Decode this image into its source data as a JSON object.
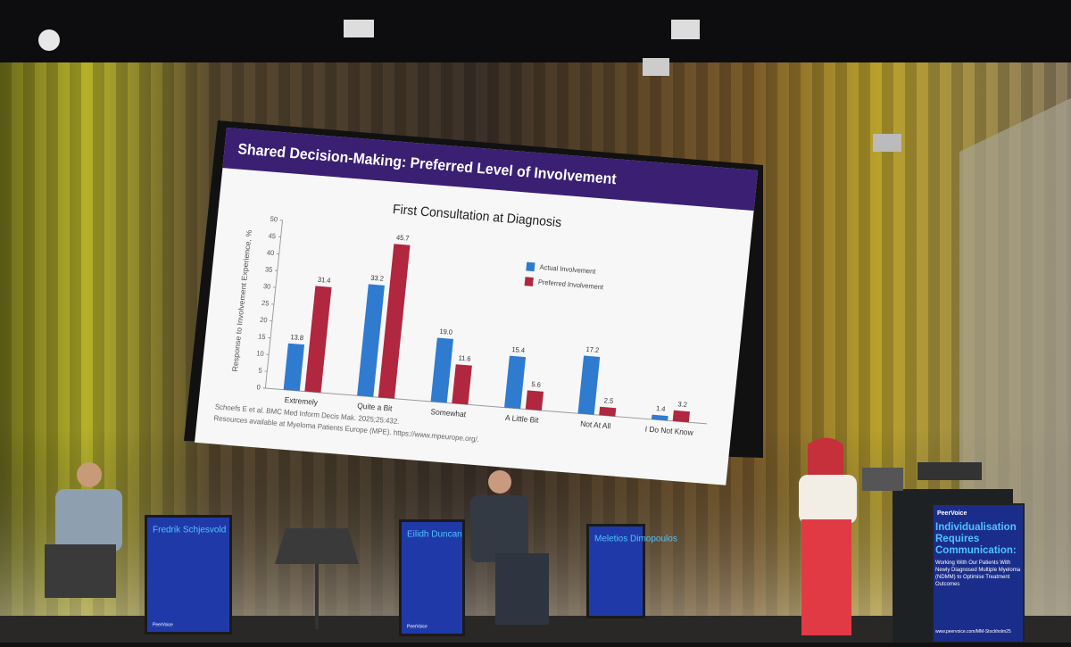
{
  "slide": {
    "title": "Shared Decision-Making: Preferred Level of Involvement",
    "footnote": [
      "Schoefs E et al. BMC Med Inform Decis Mak. 2025;25:432.",
      "Resources available at Myeloma Patients Europe (MPE). https://www.mpeurope.org/."
    ]
  },
  "chart_data": {
    "type": "bar",
    "title": "First Consultation at Diagnosis",
    "y_label": "Response to Involvement Experience, %",
    "categories": [
      "Extremely",
      "Quite a Bit",
      "Somewhat",
      "A Little Bit",
      "Not At All",
      "I Do Not Know"
    ],
    "series": [
      {
        "name": "Actual Involvement",
        "color": "#2f7bd0",
        "values": [
          13.8,
          33.2,
          19,
          15.4,
          17.2,
          1.4
        ],
        "value_labels": [
          "13.8",
          "33.2",
          "19.0",
          "15.4",
          "17.2",
          "1.4"
        ]
      },
      {
        "name": "Preferred Involvement",
        "color": "#b0273f",
        "values": [
          31.4,
          45.7,
          11.6,
          5.6,
          2.5,
          3.2
        ],
        "value_labels": [
          "31.4",
          "45.7",
          "11.6",
          "5.6",
          "2.5",
          "3.2"
        ]
      }
    ],
    "ylim": [
      0,
      50
    ],
    "yticks": [
      0,
      5,
      10,
      15,
      20,
      25,
      30,
      35,
      40,
      45,
      50
    ],
    "legend": "upper right"
  },
  "name_signs": [
    "Fredrik Schjesvold",
    "Eilidh Duncan",
    "Meletios Dimopoulos"
  ],
  "sign_brand": "PeerVoice",
  "lectern": {
    "brand": "PeerVoice",
    "title": "Individualisation Requires Communication:",
    "subtitle": "Working With Our Patients With Newly Diagnosed Multiple Myeloma (NDMM) to Optimise Treatment Outcomes",
    "url": "www.peervoice.com/MM-Stockholm25"
  }
}
